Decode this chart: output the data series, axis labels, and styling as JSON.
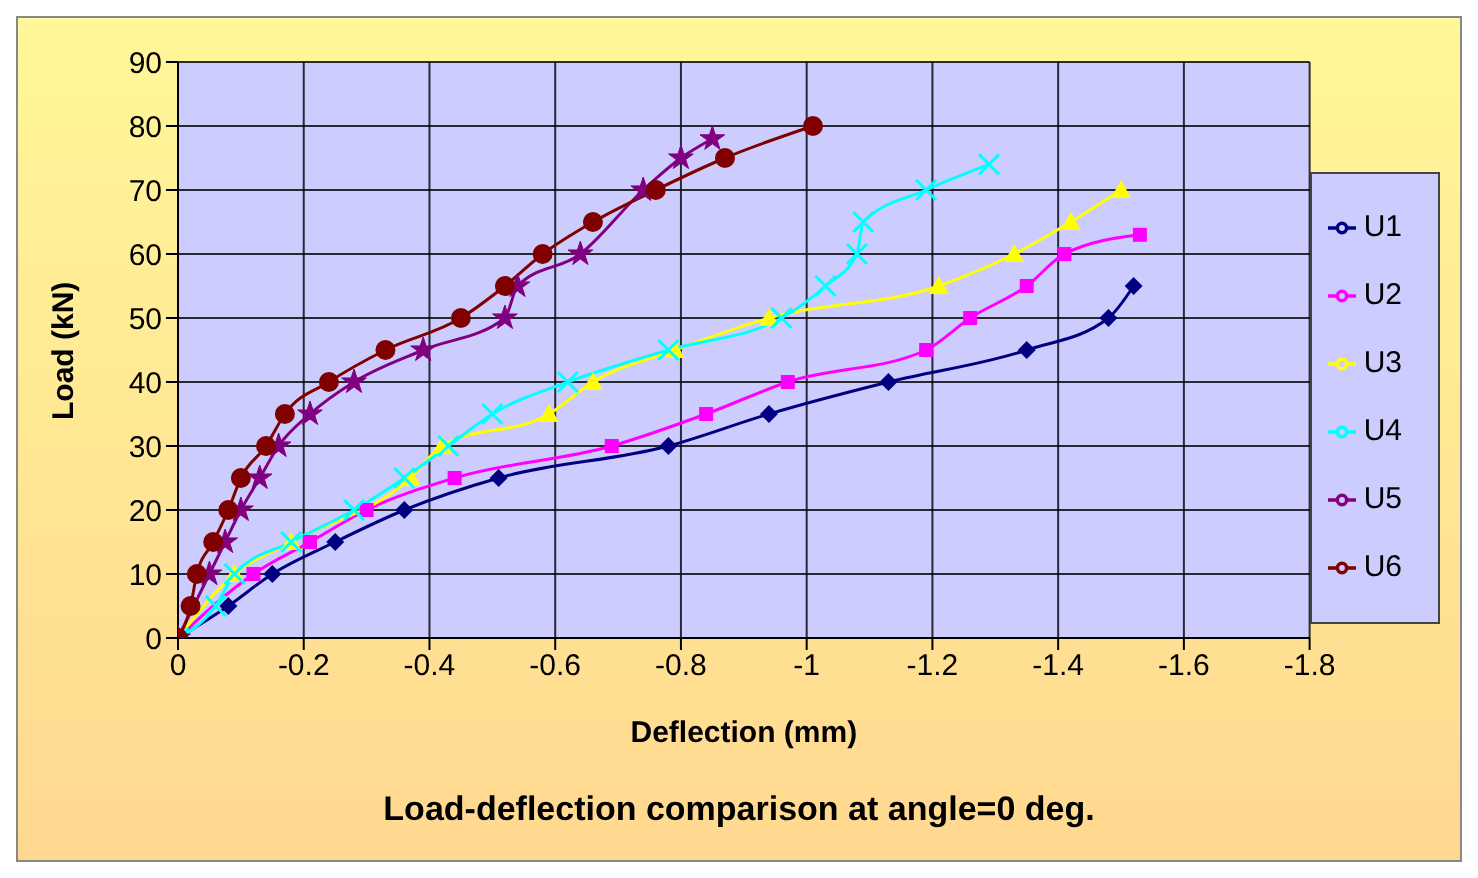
{
  "chart_data": {
    "type": "line",
    "title": "Load-deflection comparison at angle=0 deg.",
    "xlabel": "Deflection (mm)",
    "ylabel": "Load (kN)",
    "xlim": [
      0,
      -1.8
    ],
    "xticks": [
      0,
      -0.2,
      -0.4,
      -0.6,
      -0.8,
      -1,
      -1.2,
      -1.4,
      -1.6,
      -1.8
    ],
    "ylim": [
      0,
      90
    ],
    "yticks": [
      0,
      10,
      20,
      30,
      40,
      50,
      60,
      70,
      80,
      90
    ],
    "grid": true,
    "legend": "right",
    "series": [
      {
        "name": "U1",
        "color": "#000080",
        "marker": "diamond",
        "x": [
          0,
          -0.08,
          -0.15,
          -0.25,
          -0.36,
          -0.51,
          -0.78,
          -0.94,
          -1.13,
          -1.35,
          -1.48,
          -1.52
        ],
        "values": [
          0,
          5,
          10,
          15,
          20,
          25,
          30,
          35,
          40,
          45,
          50,
          55
        ]
      },
      {
        "name": "U2",
        "color": "#ff00ff",
        "marker": "square",
        "x": [
          0,
          -0.12,
          -0.21,
          -0.3,
          -0.44,
          -0.69,
          -0.84,
          -0.97,
          -1.19,
          -1.26,
          -1.35,
          -1.41,
          -1.53
        ],
        "values": [
          0,
          10,
          15,
          20,
          25,
          30,
          35,
          40,
          45,
          50,
          55,
          60,
          63
        ]
      },
      {
        "name": "U3",
        "color": "#ffff00",
        "marker": "triangle",
        "x": [
          0,
          -0.09,
          -0.18,
          -0.28,
          -0.37,
          -0.42,
          -0.59,
          -0.66,
          -0.79,
          -0.94,
          -1.21,
          -1.33,
          -1.42,
          -1.5
        ],
        "values": [
          0,
          10,
          15,
          null,
          25,
          30,
          35,
          40,
          45,
          50,
          55,
          60,
          65,
          70
        ]
      },
      {
        "name": "U4",
        "color": "#00ffff",
        "marker": "cross",
        "x": [
          0,
          -0.06,
          -0.09,
          -0.18,
          -0.28,
          -0.36,
          -0.43,
          -0.5,
          -0.62,
          -0.78,
          -0.96,
          -1.03,
          -1.08,
          -1.09,
          -1.19,
          -1.29
        ],
        "values": [
          0,
          5,
          10,
          15,
          20,
          25,
          30,
          35,
          40,
          45,
          50,
          55,
          60,
          65,
          70,
          74
        ]
      },
      {
        "name": "U5",
        "color": "#800080",
        "marker": "star",
        "x": [
          0,
          -0.03,
          -0.05,
          -0.075,
          -0.1,
          -0.13,
          -0.16,
          -0.21,
          -0.28,
          -0.39,
          -0.52,
          -0.54,
          -0.64,
          -0.66,
          -0.74,
          -0.8,
          -0.85
        ],
        "values": [
          0,
          null,
          10,
          15,
          20,
          25,
          30,
          35,
          40,
          45,
          50,
          55,
          60,
          null,
          70,
          75,
          78
        ]
      },
      {
        "name": "U6",
        "color": "#800000",
        "marker": "circle",
        "x": [
          0,
          -0.02,
          -0.03,
          -0.056,
          -0.08,
          -0.1,
          -0.14,
          -0.17,
          -0.24,
          -0.33,
          -0.45,
          -0.52,
          -0.58,
          -0.66,
          -0.76,
          -0.87,
          -1.01
        ],
        "values": [
          0,
          5,
          10,
          15,
          20,
          25,
          30,
          35,
          40,
          45,
          50,
          55,
          60,
          65,
          70,
          75,
          80
        ]
      }
    ]
  }
}
